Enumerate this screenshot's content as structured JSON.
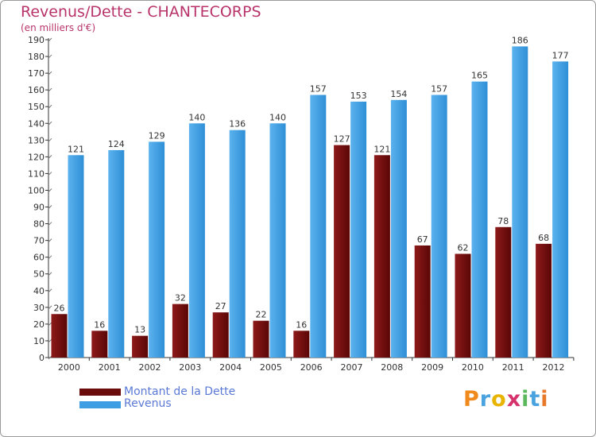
{
  "header": {
    "title": "Revenus/Dette - CHANTECORPS",
    "subtitle": "(en milliers d'€)"
  },
  "legend": {
    "items": [
      {
        "label": "Montant de la Dette",
        "color": "#7a1010"
      },
      {
        "label": "Revenus",
        "color": "#3f9ee3"
      }
    ]
  },
  "logo": {
    "text": "Proxiti"
  },
  "colors": {
    "dette": "#7a1010",
    "revenus": "#3f9ee3",
    "title": "#b8336a",
    "legend_text": "#5b79d6"
  },
  "chart_data": {
    "type": "bar",
    "title": "Revenus/Dette - CHANTECORPS",
    "subtitle": "(en milliers d'€)",
    "xlabel": "",
    "ylabel": "",
    "ylim": [
      0,
      190
    ],
    "yticks": [
      0,
      10,
      20,
      30,
      40,
      50,
      60,
      70,
      80,
      90,
      100,
      110,
      120,
      130,
      140,
      150,
      160,
      170,
      180,
      190
    ],
    "grid": false,
    "legend_position": "bottom-left",
    "categories": [
      "2000",
      "2001",
      "2002",
      "2003",
      "2004",
      "2005",
      "2006",
      "2007",
      "2008",
      "2009",
      "2010",
      "2011",
      "2012"
    ],
    "series": [
      {
        "name": "Montant de la Dette",
        "values": [
          26,
          16,
          13,
          32,
          27,
          22,
          16,
          127,
          121,
          67,
          62,
          78,
          68
        ]
      },
      {
        "name": "Revenus",
        "values": [
          121,
          124,
          129,
          140,
          136,
          140,
          157,
          153,
          154,
          157,
          165,
          186,
          177
        ]
      }
    ]
  }
}
